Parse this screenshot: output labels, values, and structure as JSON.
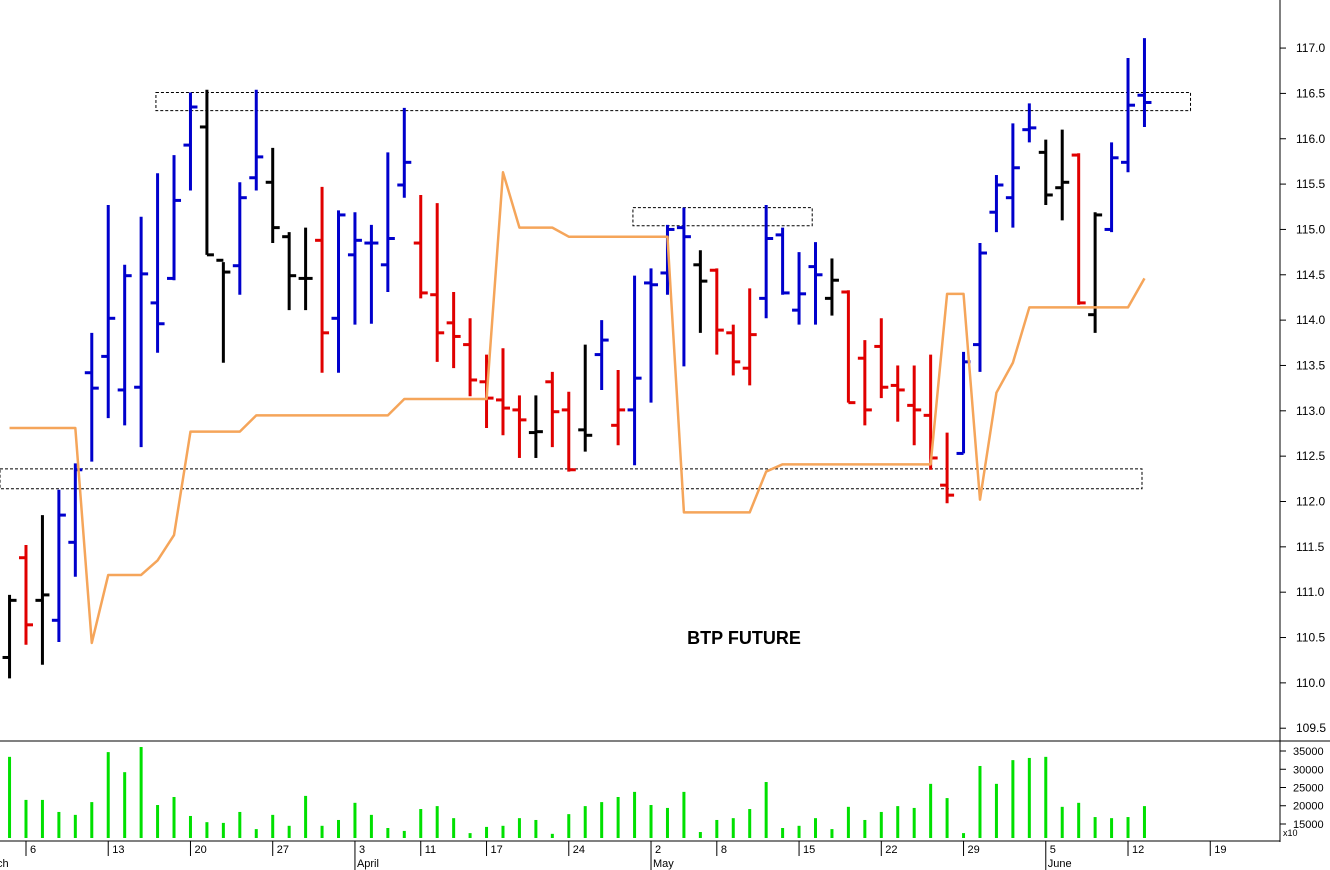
{
  "chart_data": [
    {
      "type": "ohlc",
      "title": "BTP FUTURE",
      "xlim": [
        -0.58,
        77.24
      ],
      "xticks": [
        {
          "value": 1,
          "label": "6"
        },
        {
          "value": 6,
          "label": "13"
        },
        {
          "value": 11,
          "label": "20"
        },
        {
          "value": 16,
          "label": "27"
        },
        {
          "value": 21,
          "label": "3"
        },
        {
          "value": 25,
          "label": "11"
        },
        {
          "value": 29,
          "label": "17"
        },
        {
          "value": 34,
          "label": "24"
        },
        {
          "value": 39,
          "label": "2"
        },
        {
          "value": 43,
          "label": "8"
        },
        {
          "value": 48,
          "label": "15"
        },
        {
          "value": 53,
          "label": "22"
        },
        {
          "value": 58,
          "label": "29"
        },
        {
          "value": 63,
          "label": "5"
        },
        {
          "value": 68,
          "label": "12"
        },
        {
          "value": 73,
          "label": "19"
        }
      ],
      "month_labels": [
        {
          "value": -2.04,
          "label": "March"
        },
        {
          "value": 21,
          "label": "April"
        },
        {
          "value": 39,
          "label": "May"
        },
        {
          "value": 63,
          "label": "June"
        }
      ],
      "ylim": [
        109.37,
        117.53
      ],
      "yticks": [
        109.5,
        {
          "value": 110,
          "label": "110.0"
        },
        110.5,
        {
          "value": 111,
          "label": "111.0"
        },
        111.5,
        {
          "value": 112,
          "label": "112.0"
        },
        112.5,
        {
          "value": 113,
          "label": "113.0"
        },
        113.5,
        {
          "value": 114,
          "label": "114.0"
        },
        114.5,
        {
          "value": 115,
          "label": "115.0"
        },
        115.5,
        {
          "value": 116,
          "label": "116.0"
        },
        116.5,
        {
          "value": 117,
          "label": "117.0"
        }
      ],
      "high": [
        110.97,
        111.52,
        111.85,
        112.13,
        112.42,
        113.86,
        115.27,
        114.61,
        115.14,
        115.62,
        115.82,
        116.51,
        116.54,
        114.64,
        115.52,
        116.54,
        115.9,
        114.97,
        115.02,
        115.47,
        115.21,
        115.19,
        115.05,
        115.85,
        116.34,
        115.38,
        115.29,
        114.31,
        114.02,
        113.62,
        113.69,
        113.17,
        113.17,
        113.43,
        113.21,
        113.73,
        114.0,
        113.45,
        114.49,
        114.57,
        115.05,
        115.24,
        114.77,
        114.57,
        113.95,
        114.35,
        115.27,
        115.02,
        114.75,
        114.86,
        114.68,
        114.33,
        113.78,
        114.02,
        113.5,
        113.5,
        113.62,
        112.76,
        113.65,
        114.85,
        115.6,
        116.17,
        116.39,
        115.99,
        116.1,
        115.84,
        115.19,
        115.96,
        116.89,
        117.11
      ],
      "low": [
        110.05,
        110.42,
        110.2,
        110.45,
        111.17,
        112.44,
        112.92,
        112.84,
        112.6,
        113.64,
        114.44,
        115.43,
        114.72,
        113.53,
        114.28,
        115.43,
        114.85,
        114.11,
        114.11,
        113.42,
        113.42,
        113.95,
        113.96,
        114.31,
        115.35,
        114.24,
        113.54,
        113.47,
        113.16,
        112.81,
        112.73,
        112.48,
        112.48,
        112.6,
        112.33,
        112.55,
        113.23,
        112.62,
        112.4,
        113.09,
        114.28,
        113.49,
        113.86,
        113.62,
        113.39,
        113.28,
        114.02,
        114.28,
        113.95,
        113.95,
        114.05,
        113.09,
        112.84,
        113.14,
        112.88,
        112.62,
        112.35,
        111.98,
        112.53,
        113.43,
        114.97,
        115.02,
        115.96,
        115.27,
        115.1,
        114.17,
        113.86,
        114.97,
        115.63,
        116.13
      ],
      "open": [
        110.28,
        111.38,
        110.91,
        110.69,
        111.55,
        113.42,
        113.6,
        113.23,
        113.26,
        114.19,
        114.46,
        115.93,
        116.13,
        114.66,
        114.6,
        115.57,
        115.52,
        114.92,
        114.46,
        114.88,
        114.02,
        114.72,
        114.85,
        114.61,
        115.49,
        114.85,
        114.28,
        113.97,
        113.73,
        113.32,
        113.12,
        113.01,
        112.76,
        113.32,
        113.01,
        112.79,
        113.62,
        112.84,
        113.01,
        114.41,
        114.52,
        115.02,
        114.61,
        114.55,
        113.86,
        113.47,
        114.24,
        114.94,
        114.11,
        114.59,
        114.24,
        114.31,
        113.58,
        113.71,
        113.28,
        113.06,
        112.95,
        112.18,
        112.53,
        113.73,
        115.19,
        115.35,
        116.1,
        115.85,
        115.46,
        115.82,
        114.06,
        115.0,
        115.74,
        116.48
      ],
      "close": [
        110.91,
        110.64,
        110.97,
        111.85,
        112.35,
        113.25,
        114.02,
        114.49,
        114.51,
        113.96,
        115.32,
        116.35,
        114.72,
        114.53,
        115.35,
        115.8,
        115.02,
        114.49,
        114.46,
        113.86,
        115.16,
        114.88,
        114.85,
        114.9,
        115.74,
        114.3,
        113.86,
        113.82,
        113.34,
        113.14,
        113.03,
        112.9,
        112.77,
        112.99,
        112.35,
        112.73,
        113.78,
        113.01,
        113.36,
        114.39,
        115.0,
        114.92,
        114.43,
        113.89,
        113.54,
        113.84,
        114.9,
        114.3,
        114.29,
        114.5,
        114.44,
        113.09,
        113.01,
        113.26,
        113.23,
        113.01,
        112.48,
        112.07,
        113.54,
        114.74,
        115.49,
        115.68,
        116.12,
        115.38,
        115.52,
        114.19,
        115.16,
        115.79,
        116.37,
        116.4
      ],
      "colors": [
        "#000000",
        "#e00000",
        "#000000",
        "#0000cc",
        "#0000cc",
        "#0000cc",
        "#0000cc",
        "#0000cc",
        "#0000cc",
        "#0000cc",
        "#0000cc",
        "#0000cc",
        "#000000",
        "#000000",
        "#0000cc",
        "#0000cc",
        "#000000",
        "#000000",
        "#000000",
        "#e00000",
        "#0000cc",
        "#0000cc",
        "#0000cc",
        "#0000cc",
        "#0000cc",
        "#e00000",
        "#e00000",
        "#e00000",
        "#e00000",
        "#e00000",
        "#e00000",
        "#e00000",
        "#000000",
        "#e00000",
        "#e00000",
        "#000000",
        "#0000cc",
        "#e00000",
        "#0000cc",
        "#0000cc",
        "#0000cc",
        "#0000cc",
        "#000000",
        "#e00000",
        "#e00000",
        "#e00000",
        "#0000cc",
        "#0000cc",
        "#0000cc",
        "#0000cc",
        "#000000",
        "#e00000",
        "#e00000",
        "#e00000",
        "#e00000",
        "#e00000",
        "#e00000",
        "#e00000",
        "#0000cc",
        "#0000cc",
        "#0000cc",
        "#0000cc",
        "#0000cc",
        "#000000",
        "#000000",
        "#e00000",
        "#000000",
        "#0000cc",
        "#0000cc",
        "#0000cc"
      ],
      "line": {
        "color": "#f5a55a",
        "values": [
          112.81,
          112.81,
          112.81,
          112.81,
          112.81,
          110.44,
          111.19,
          111.19,
          111.19,
          111.35,
          111.63,
          112.77,
          112.77,
          112.77,
          112.77,
          112.95,
          112.95,
          112.95,
          112.95,
          112.95,
          112.95,
          112.95,
          112.95,
          112.95,
          113.13,
          113.13,
          113.13,
          113.13,
          113.13,
          113.13,
          115.63,
          115.02,
          115.02,
          115.02,
          114.92,
          114.92,
          114.92,
          114.92,
          114.92,
          114.92,
          114.92,
          111.88,
          111.88,
          111.88,
          111.88,
          111.88,
          112.33,
          112.41,
          112.41,
          112.41,
          112.41,
          112.41,
          112.41,
          112.41,
          112.41,
          112.41,
          112.41,
          114.29,
          114.29,
          112.02,
          113.2,
          113.53,
          114.14,
          114.14,
          114.14,
          114.14,
          114.14,
          114.14,
          114.14,
          114.46
        ]
      },
      "zones": [
        {
          "x": [
            8.9,
            71.8
          ],
          "y": [
            116.31,
            116.51
          ]
        },
        {
          "x": [
            37.9,
            48.8
          ],
          "y": [
            115.04,
            115.24
          ]
        },
        {
          "x": [
            -0.58,
            68.85
          ],
          "y": [
            112.14,
            112.36
          ]
        }
      ]
    },
    {
      "type": "bar",
      "color": "#00e000",
      "unit_label": "x10",
      "ylim": [
        11160,
        37470
      ],
      "yticks": [
        15000,
        20000,
        25000,
        30000,
        35000
      ],
      "values": [
        33400,
        21600,
        21600,
        18300,
        17500,
        21000,
        34700,
        29200,
        36100,
        20200,
        22400,
        17200,
        15500,
        15300,
        18300,
        13600,
        17500,
        14500,
        22700,
        14500,
        16100,
        20800,
        17500,
        13900,
        13100,
        19100,
        19900,
        16600,
        12500,
        14200,
        14500,
        16600,
        16100,
        12300,
        17700,
        19900,
        21000,
        22400,
        23800,
        20200,
        19400,
        23800,
        12800,
        16100,
        16600,
        19100,
        26500,
        13900,
        14500,
        16600,
        13600,
        19700,
        16100,
        18300,
        19900,
        19400,
        26000,
        22100,
        12500,
        30900,
        26000,
        32500,
        33100,
        33400,
        19700,
        20800,
        16900,
        16600,
        16900,
        19900
      ]
    }
  ]
}
